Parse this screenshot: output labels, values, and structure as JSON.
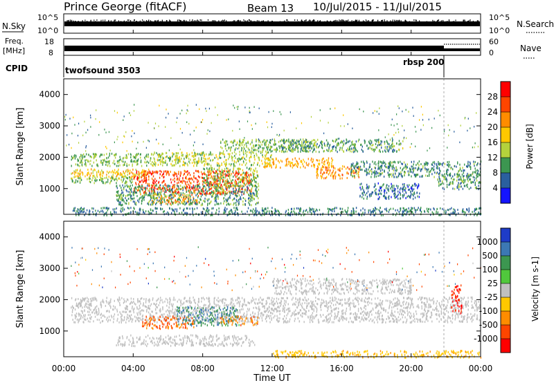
{
  "header": {
    "station": "Prince George (fitACF)",
    "beam": "Beam 13",
    "daterange": "10/Jul/2015 - 11/Jul/2015"
  },
  "left_labels": {
    "nsky": "N.Sky",
    "freq_line1": "Freq.",
    "freq_line2": "[MHz]",
    "cpid": "CPID"
  },
  "right_labels": {
    "nsearch": "N.Search",
    "nave": "Nave"
  },
  "noise_panel": {
    "left_ticks": [
      "10^5",
      "10^0"
    ],
    "right_ticks": [
      "10^5",
      "10^0"
    ]
  },
  "freq_panel": {
    "left_ticks": [
      "18",
      "8"
    ],
    "right_ticks": [
      "60",
      "0"
    ]
  },
  "cpid_panel": {
    "modes": [
      {
        "label": "twofsound 3503",
        "start_hour": 0
      },
      {
        "label": "rbsp 200",
        "start_hour": 21.7
      }
    ]
  },
  "time_axis": {
    "label": "Time UT",
    "ticks": [
      "00:00",
      "04:00",
      "08:00",
      "12:00",
      "16:00",
      "20:00",
      "00:00"
    ]
  },
  "power_colorbar": {
    "label": "Power [dB]",
    "ticks": [
      "28",
      "24",
      "20",
      "16",
      "12",
      "8",
      "4"
    ],
    "colors": [
      "#ff0000",
      "#ff4500",
      "#ff8c00",
      "#ffc800",
      "#b4d23c",
      "#3c9650",
      "#2a5f9e",
      "#1414ff"
    ]
  },
  "velocity_colorbar": {
    "label": "Velocity [m s-1]",
    "ticks": [
      "1000",
      "500",
      "100",
      "25",
      "-25",
      "-100",
      "-500",
      "-1000"
    ],
    "colors": [
      "#1e3cc8",
      "#3c78b4",
      "#3c9650",
      "#50c83c",
      "#c0c0c0",
      "#ffc800",
      "#ff8c00",
      "#ff4500",
      "#ff0000"
    ]
  },
  "chart_data": {
    "type": "heatmap",
    "x_range_hours": [
      0,
      24
    ],
    "y_range_km": [
      180,
      4500
    ],
    "ylabel": "Slant Range [km]",
    "xlabel": "Time UT",
    "y_ticks": [
      "1000",
      "2000",
      "3000",
      "4000"
    ],
    "power_blobs": [
      {
        "t0": 0.4,
        "t1": 5.0,
        "r0": 1350,
        "r1": 1650,
        "level": 18
      },
      {
        "t0": 0.4,
        "t1": 5.0,
        "r0": 1750,
        "r1": 2150,
        "level": 12
      },
      {
        "t0": 0.4,
        "t1": 4.0,
        "r0": 1200,
        "r1": 1400,
        "level": 12
      },
      {
        "t0": 4.0,
        "t1": 10.8,
        "r0": 850,
        "r1": 1600,
        "level": 26
      },
      {
        "t0": 5.0,
        "t1": 7.8,
        "r0": 550,
        "r1": 850,
        "level": 22
      },
      {
        "t0": 3.0,
        "t1": 11.2,
        "r0": 500,
        "r1": 1150,
        "level": 10
      },
      {
        "t0": 8.0,
        "t1": 11.2,
        "r0": 1100,
        "r1": 1700,
        "level": 13
      },
      {
        "t0": 5.0,
        "t1": 12.0,
        "r0": 1750,
        "r1": 2200,
        "level": 14
      },
      {
        "t0": 9.0,
        "t1": 14.5,
        "r0": 2200,
        "r1": 2600,
        "level": 12
      },
      {
        "t0": 11.5,
        "t1": 15.5,
        "r0": 1700,
        "r1": 2000,
        "level": 20
      },
      {
        "t0": 14.5,
        "t1": 17.0,
        "r0": 1350,
        "r1": 1750,
        "level": 22
      },
      {
        "t0": 12.5,
        "t1": 19.5,
        "r0": 2200,
        "r1": 2600,
        "level": 10
      },
      {
        "t0": 16.5,
        "t1": 24.0,
        "r0": 1400,
        "r1": 1900,
        "level": 9
      },
      {
        "t0": 17.0,
        "t1": 20.5,
        "r0": 700,
        "r1": 1200,
        "level": 7
      },
      {
        "t0": 21.5,
        "t1": 24.0,
        "r0": 1000,
        "r1": 1500,
        "level": 10
      },
      {
        "t0": 0.5,
        "t1": 24.0,
        "r0": 180,
        "r1": 420,
        "level": 8
      }
    ],
    "velocity_blobs": [
      {
        "t0": 0.4,
        "t1": 24.0,
        "r0": 1300,
        "r1": 2100,
        "v": 0
      },
      {
        "t0": 4.5,
        "t1": 7.5,
        "r0": 1100,
        "r1": 1500,
        "v": -300
      },
      {
        "t0": 6.5,
        "t1": 10.0,
        "r0": 1200,
        "r1": 1800,
        "v": 300
      },
      {
        "t0": 9.0,
        "t1": 11.2,
        "r0": 1200,
        "r1": 1500,
        "v": -150
      },
      {
        "t0": 3.0,
        "t1": 11.0,
        "r0": 550,
        "r1": 900,
        "v": 0
      },
      {
        "t0": 12.0,
        "t1": 20.0,
        "r0": 2200,
        "r1": 2700,
        "v": 0
      },
      {
        "t0": 22.3,
        "t1": 22.9,
        "r0": 1600,
        "r1": 2500,
        "v": -700
      },
      {
        "t0": 12.0,
        "t1": 24.0,
        "r0": 180,
        "r1": 400,
        "v": -50
      }
    ]
  }
}
